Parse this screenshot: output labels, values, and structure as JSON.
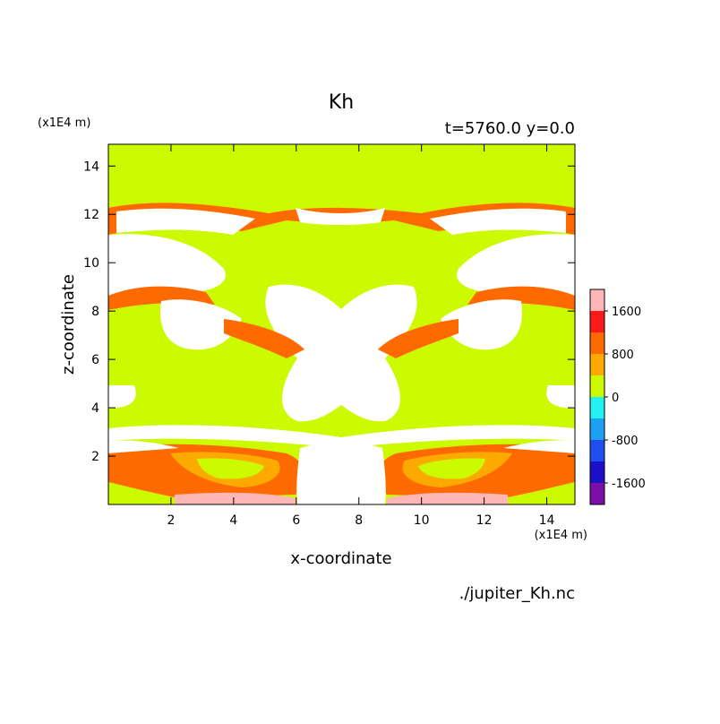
{
  "chart_data": {
    "type": "heatmap",
    "title": "Kh",
    "subtitle": "t=5760.0 y=0.0",
    "xlabel": "x-coordinate",
    "ylabel": "z-coordinate",
    "x_unit": "(x1E4 m)",
    "z_unit": "(x1E4 m)",
    "source_label": "./jupiter_Kh.nc",
    "xlim": [
      0,
      14.9
    ],
    "ylim": [
      0,
      14.9
    ],
    "x_ticks": [
      2,
      4,
      6,
      8,
      10,
      12,
      14
    ],
    "y_ticks": [
      2,
      4,
      6,
      8,
      10,
      12,
      14
    ],
    "colorbar": {
      "levels": [
        -2000,
        -1600,
        -1200,
        -800,
        -400,
        0,
        400,
        800,
        1200,
        1600,
        2000
      ],
      "tick_labels": [
        "1600",
        "800",
        "0",
        "-800",
        "-1600"
      ],
      "tick_values": [
        1600,
        800,
        0,
        -800,
        -1600
      ],
      "colors": [
        "#7b0fa8",
        "#1c10c8",
        "#1f4ff0",
        "#1ea0f0",
        "#22f2f2",
        "#ccfa00",
        "#fdaa00",
        "#ff6a00",
        "#ff1a1a",
        "#ffb6b6"
      ],
      "above_max_color": "#ffffff"
    },
    "field_background": "#ccfa00"
  }
}
